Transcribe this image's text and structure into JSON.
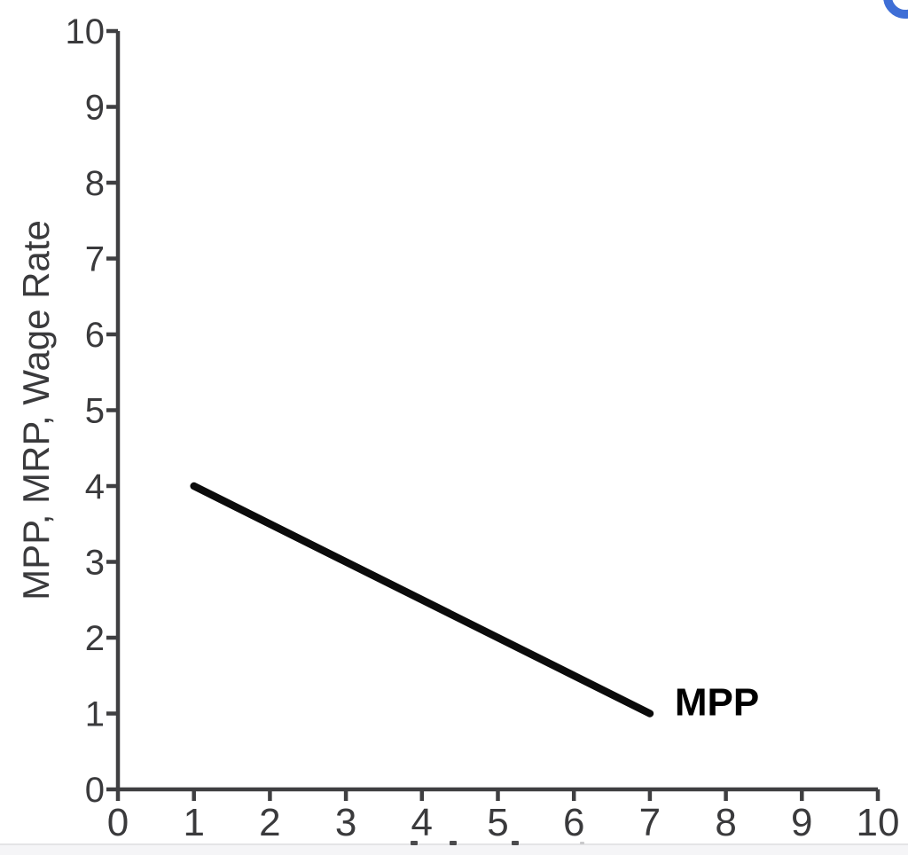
{
  "chart_data": {
    "type": "line",
    "title": "",
    "xlabel": "",
    "ylabel": "MPP, MRP, Wage Rate",
    "xlim": [
      0,
      10
    ],
    "ylim": [
      0,
      10
    ],
    "x_ticks": [
      "0",
      "1",
      "2",
      "3",
      "4",
      "5",
      "6",
      "7",
      "8",
      "9",
      "10"
    ],
    "y_ticks": [
      "0",
      "1",
      "2",
      "3",
      "4",
      "5",
      "6",
      "7",
      "8",
      "9",
      "10"
    ],
    "grid": false,
    "legend_position": "inline-right-of-line-end",
    "axis_color": "#3f3f41",
    "tick_label_color": "#3a3a3c",
    "series": [
      {
        "name": "MPP",
        "points": [
          [
            1,
            4
          ],
          [
            7,
            1
          ]
        ],
        "color": "#0b0b0b",
        "label": "MPP",
        "label_color": "#000000"
      }
    ]
  },
  "page": {
    "help_icon_color": "#3e6ed6",
    "bottom_bar_color": "#f5f5f7",
    "bottom_bar_border_color": "#e4e4e6"
  }
}
